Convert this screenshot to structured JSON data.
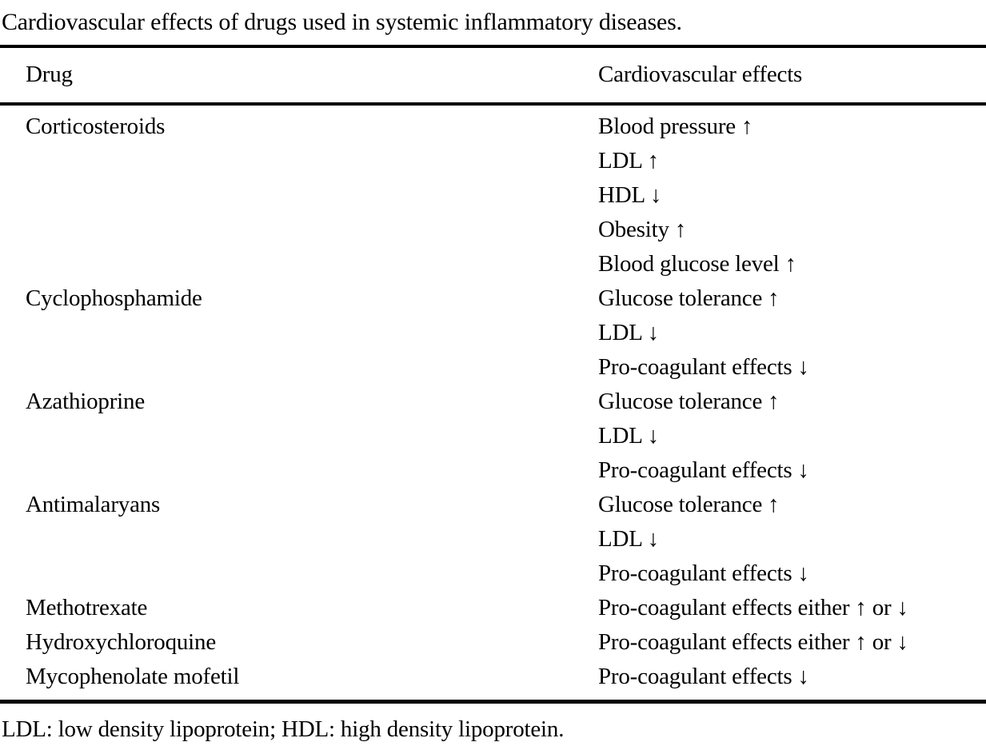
{
  "colors": {
    "text": "#000000",
    "background": "#ffffff",
    "rule": "#000000"
  },
  "table": {
    "caption": "Cardiovascular effects of drugs used in systemic inflammatory diseases.",
    "columns": {
      "drug": "Drug",
      "effects": "Cardiovascular effects"
    },
    "rows": [
      {
        "drug": "Corticosteroids",
        "effects": [
          "Blood pressure ↑",
          "LDL ↑",
          "HDL ↓",
          "Obesity ↑",
          "Blood glucose level ↑"
        ]
      },
      {
        "drug": "Cyclophosphamide",
        "effects": [
          "Glucose tolerance ↑",
          "LDL ↓",
          "Pro-coagulant effects ↓"
        ]
      },
      {
        "drug": "Azathioprine",
        "effects": [
          "Glucose tolerance ↑",
          "LDL ↓",
          "Pro-coagulant effects ↓"
        ]
      },
      {
        "drug": "Antimalaryans",
        "effects": [
          "Glucose tolerance ↑",
          "LDL ↓",
          "Pro-coagulant effects ↓"
        ]
      },
      {
        "drug": "Methotrexate",
        "effects": [
          "Pro-coagulant effects either ↑ or ↓"
        ]
      },
      {
        "drug": "Hydroxychloroquine",
        "effects": [
          "Pro-coagulant effects either ↑ or ↓"
        ]
      },
      {
        "drug": "Mycophenolate mofetil",
        "effects": [
          "Pro-coagulant effects ↓"
        ]
      }
    ],
    "footnote": "LDL: low density lipoprotein; HDL: high density lipoprotein."
  }
}
